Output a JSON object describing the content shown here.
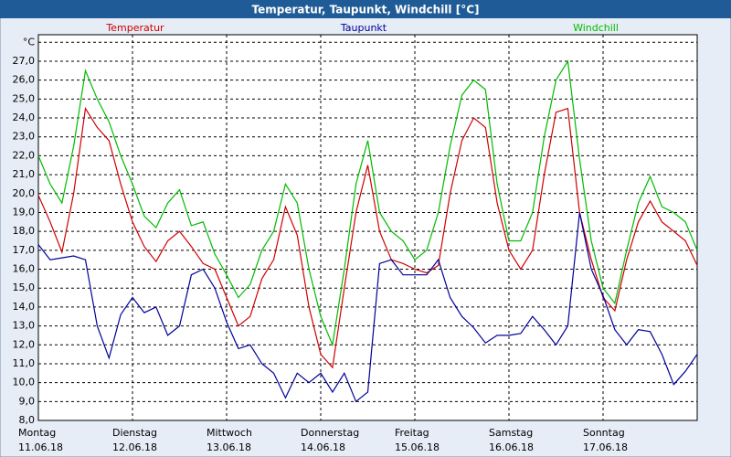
{
  "chart_data": {
    "type": "line",
    "title": "Temperatur, Taupunkt, Windchill [°C]",
    "x": [
      0,
      3,
      6,
      9,
      12,
      15,
      18,
      21,
      24,
      27,
      30,
      33,
      36,
      39,
      42,
      45,
      48,
      51,
      54,
      57,
      60,
      63,
      66,
      69,
      72,
      75,
      78,
      81,
      84,
      87,
      90,
      93,
      96,
      99,
      102,
      105,
      108,
      111,
      114,
      117,
      120,
      123,
      126,
      129,
      132,
      135,
      138,
      141,
      144,
      147,
      150,
      153,
      156,
      159,
      162,
      165,
      168
    ],
    "xlim": [
      0,
      168
    ],
    "xticks": [
      {
        "value": 0,
        "label": "Montag",
        "date": "11.06.18"
      },
      {
        "value": 24,
        "label": "Dienstag",
        "date": "12.06.18"
      },
      {
        "value": 48,
        "label": "Mittwoch",
        "date": "13.06.18"
      },
      {
        "value": 72,
        "label": "Donnerstag",
        "date": "14.06.18"
      },
      {
        "value": 96,
        "label": "Freitag",
        "date": "15.06.18"
      },
      {
        "value": 120,
        "label": "Samstag",
        "date": "16.06.18"
      },
      {
        "value": 144,
        "label": "Sonntag",
        "date": "17.06.18"
      }
    ],
    "ylim": [
      8,
      28.4
    ],
    "yticks": [
      {
        "value": 8,
        "label": "8,0"
      },
      {
        "value": 9,
        "label": "9,0"
      },
      {
        "value": 10,
        "label": "10,0"
      },
      {
        "value": 11,
        "label": "11,0"
      },
      {
        "value": 12,
        "label": "12,0"
      },
      {
        "value": 13,
        "label": "13,0"
      },
      {
        "value": 14,
        "label": "14,0"
      },
      {
        "value": 15,
        "label": "15,0"
      },
      {
        "value": 16,
        "label": "16,0"
      },
      {
        "value": 17,
        "label": "17,0"
      },
      {
        "value": 18,
        "label": "18,0"
      },
      {
        "value": 19,
        "label": "19,0"
      },
      {
        "value": 20,
        "label": "20,0"
      },
      {
        "value": 21,
        "label": "21,0"
      },
      {
        "value": 22,
        "label": "22,0"
      },
      {
        "value": 23,
        "label": "23,0"
      },
      {
        "value": 24,
        "label": "24,0"
      },
      {
        "value": 25,
        "label": "25,0"
      },
      {
        "value": 26,
        "label": "26,0"
      },
      {
        "value": 27,
        "label": "27,0"
      },
      {
        "value": 28,
        "label": "°C"
      }
    ],
    "grid": true,
    "series": [
      {
        "name": "Temperatur",
        "color": "#d00000",
        "values": [
          19.9,
          18.5,
          16.9,
          20.0,
          24.5,
          23.5,
          22.8,
          20.5,
          18.5,
          17.2,
          16.4,
          17.5,
          18.0,
          17.2,
          16.3,
          16.0,
          14.5,
          13.0,
          13.5,
          15.5,
          16.5,
          19.3,
          17.8,
          14.0,
          11.5,
          10.8,
          15.0,
          19.0,
          21.5,
          18.0,
          16.5,
          16.3,
          16.0,
          15.8,
          16.2,
          20.0,
          22.8,
          24.0,
          23.5,
          19.5,
          17.0,
          16.0,
          17.0,
          21.0,
          24.3,
          24.5,
          19.0,
          16.5,
          14.5,
          13.8,
          16.5,
          18.5,
          19.6,
          18.5,
          18.0,
          17.5,
          16.2
        ]
      },
      {
        "name": "Taupunkt",
        "color": "#000099",
        "values": [
          17.3,
          16.5,
          16.6,
          16.7,
          16.5,
          13.0,
          11.3,
          13.6,
          14.5,
          13.7,
          14.0,
          12.5,
          13.0,
          15.7,
          16.0,
          15.0,
          13.2,
          11.8,
          12.0,
          11.0,
          10.5,
          9.2,
          10.5,
          10.0,
          10.5,
          9.5,
          10.5,
          9.0,
          9.5,
          16.3,
          16.5,
          15.7,
          15.7,
          15.7,
          16.5,
          14.5,
          13.5,
          12.9,
          12.1,
          12.5,
          12.5,
          12.6,
          13.5,
          12.8,
          12.0,
          13.0,
          19.0,
          16.0,
          14.6,
          12.8,
          12.0,
          12.8,
          12.7,
          11.5,
          9.9,
          10.6,
          11.5
        ]
      },
      {
        "name": "Windchill",
        "color": "#00bb00",
        "values": [
          22.0,
          20.5,
          19.5,
          22.5,
          26.5,
          25.0,
          23.8,
          22.0,
          20.5,
          18.8,
          18.2,
          19.5,
          20.2,
          18.3,
          18.5,
          16.8,
          15.7,
          14.5,
          15.2,
          17.0,
          18.0,
          20.5,
          19.5,
          16.0,
          13.5,
          12.0,
          16.0,
          20.5,
          22.8,
          19.0,
          18.0,
          17.5,
          16.5,
          17.0,
          19.0,
          22.5,
          25.2,
          26.0,
          25.5,
          20.5,
          17.5,
          17.5,
          19.0,
          23.0,
          26.0,
          27.0,
          21.8,
          17.5,
          15.0,
          14.2,
          17.0,
          19.5,
          20.9,
          19.3,
          19.0,
          18.5,
          17.0
        ]
      }
    ]
  }
}
